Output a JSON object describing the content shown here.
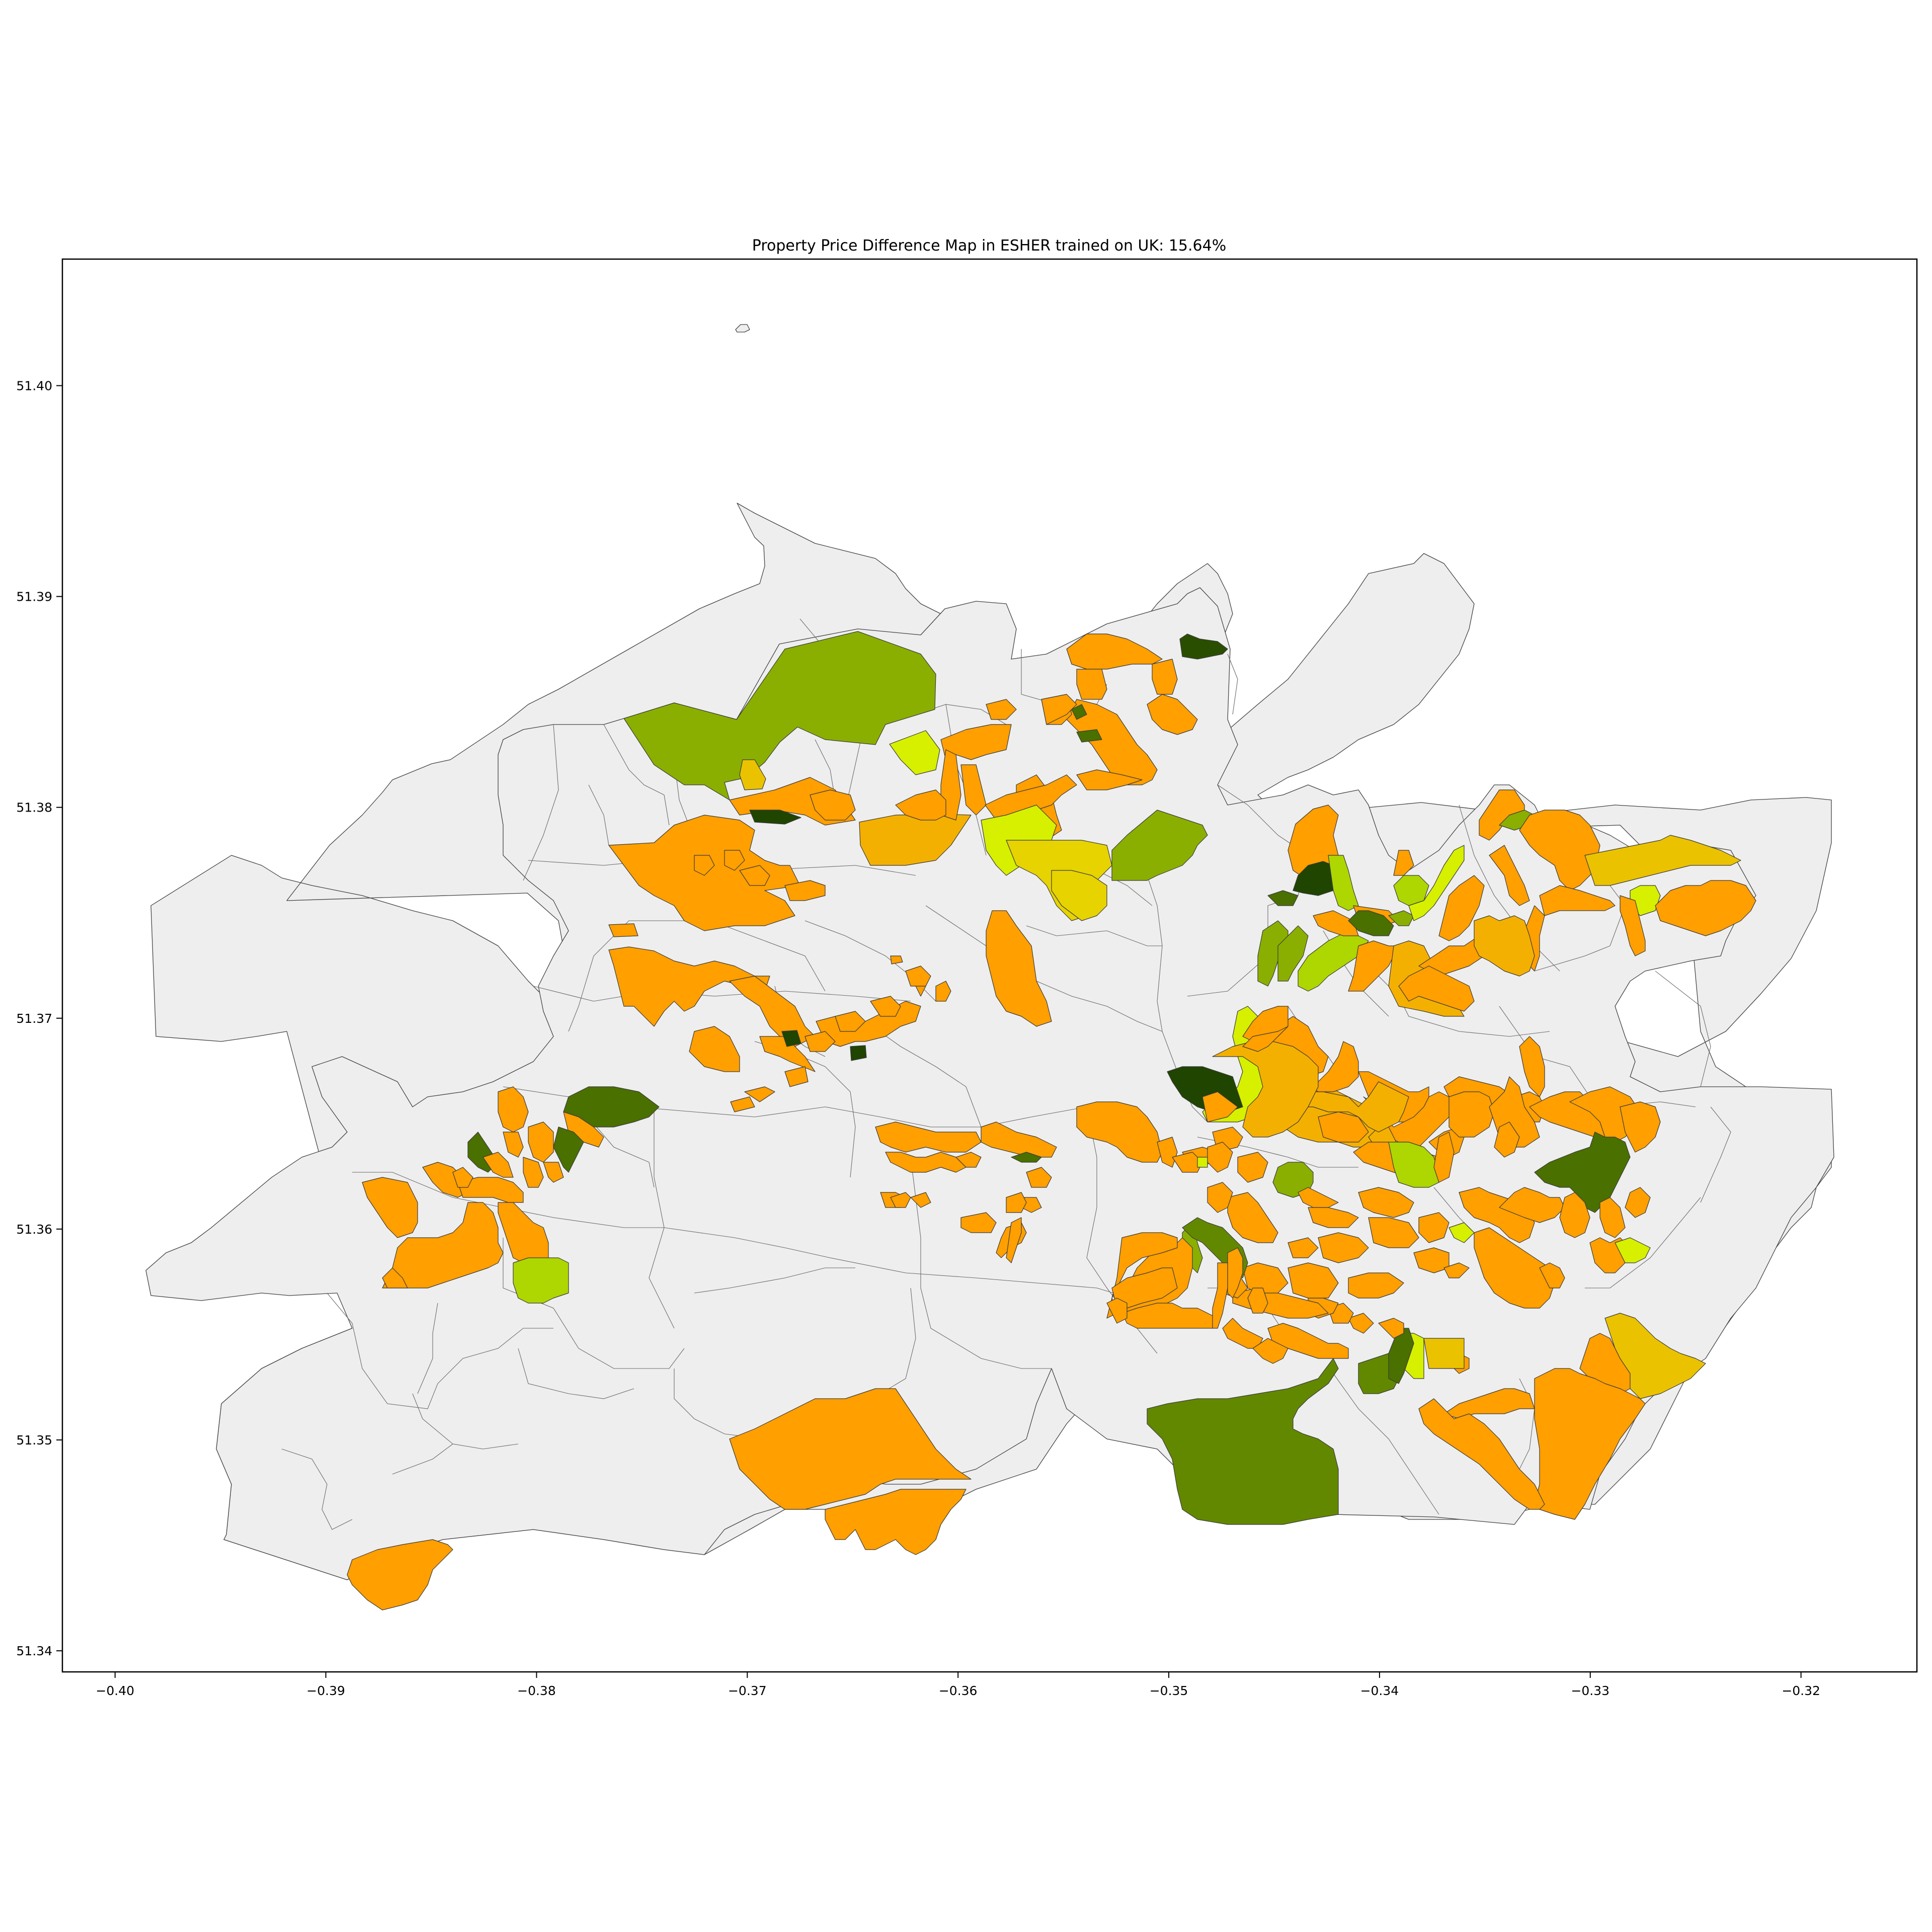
{
  "chart_data": {
    "type": "choropleth",
    "title": "Property Price Difference Map in ESHER trained on UK: 15.64%",
    "xlabel": "",
    "ylabel": "",
    "xlim": [
      -0.4025,
      -0.3145
    ],
    "ylim": [
      51.339,
      51.406
    ],
    "x_ticks": [
      "-0.40",
      "-0.39",
      "-0.38",
      "-0.37",
      "-0.36",
      "-0.35",
      "-0.34",
      "-0.33",
      "-0.32"
    ],
    "y_ticks": [
      "51.34",
      "51.35",
      "51.36",
      "51.37",
      "51.38",
      "51.39",
      "51.40"
    ],
    "grid": false,
    "legend": "none",
    "colors": {
      "no_data": "#eeeeee",
      "orange": "#ff9f00",
      "amber": "#f4b000",
      "mustard": "#eac200",
      "lime_yellow": "#d6f000",
      "yellow_green": "#aed600",
      "olive_green": "#8aaf00",
      "mid_green": "#628800",
      "dark_green": "#4a7000",
      "darkest_green": "#1f4500"
    }
  }
}
